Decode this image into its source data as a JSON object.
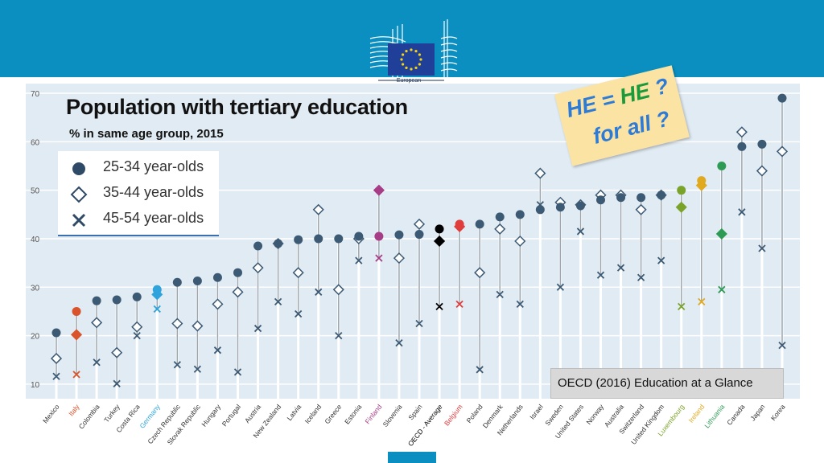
{
  "header": {
    "logo_text": "European",
    "brand_color": "#0a8fc0"
  },
  "title": "Population with tertiary education",
  "subtitle": "% in same age group, 2015",
  "legend": {
    "items": [
      {
        "label": "25-34 year-olds",
        "marker": "filled-circle"
      },
      {
        "label": "35-44 year-olds",
        "marker": "open-diamond"
      },
      {
        "label": "45-54 year-olds",
        "marker": "cross"
      }
    ]
  },
  "sticker": {
    "he_left": "HE",
    "equals": "=",
    "he_right": "HE",
    "question": "?",
    "line2": "for all ?"
  },
  "source_note": "OECD (2016) Education at a Glance",
  "chart_data": {
    "type": "scatter",
    "ylim": [
      7,
      72
    ],
    "yticks": [
      10,
      20,
      30,
      40,
      50,
      60,
      70
    ],
    "grid": true,
    "categories": [
      "Mexico",
      "Italy",
      "Colombia",
      "Turkey",
      "Costa Rica",
      "Germany",
      "Czech Republic",
      "Slovak Republic",
      "Hungary",
      "Portugal",
      "Austria",
      "New Zealand",
      "Latvia",
      "Iceland",
      "Greece",
      "Estonia",
      "Finland",
      "Slovenia",
      "Spain",
      "OECD - Average",
      "Belgium",
      "Poland",
      "Denmark",
      "Netherlands",
      "Israel",
      "Sweden",
      "United States",
      "Norway",
      "Australia",
      "Switzerland",
      "United Kingdom",
      "Luxembourg",
      "Ireland",
      "Lithuania",
      "Canada",
      "Japan",
      "Korea"
    ],
    "category_colors": {
      "Italy": "#d9532b",
      "Germany": "#2fa3db",
      "Finland": "#a63d86",
      "OECD - Average": "#000000",
      "Belgium": "#e03d3d",
      "Luxembourg": "#7aa32a",
      "Ireland": "#e0a91e",
      "Lithuania": "#2e9b55"
    },
    "default_color": "#3d5a74",
    "series": [
      {
        "name": "25-34 year-olds",
        "values": [
          20.6,
          25.0,
          27.2,
          27.4,
          28.0,
          29.5,
          31.0,
          31.3,
          32.0,
          33.0,
          38.5,
          39.0,
          39.8,
          40.0,
          40.0,
          40.5,
          40.5,
          40.8,
          40.9,
          42.0,
          43.0,
          43.0,
          44.5,
          45.0,
          46.0,
          46.5,
          46.8,
          48.0,
          48.5,
          48.5,
          49.0,
          50.0,
          52.0,
          55.0,
          59.0,
          59.5,
          69.0
        ]
      },
      {
        "name": "35-44 year-olds",
        "values": [
          15.3,
          20.2,
          22.7,
          16.5,
          21.8,
          28.5,
          22.5,
          22.0,
          26.5,
          29.0,
          34.0,
          39.0,
          33.0,
          46.0,
          29.5,
          40.0,
          50.0,
          36.0,
          43.0,
          39.5,
          42.5,
          33.0,
          42.0,
          39.5,
          53.5,
          47.5,
          47.0,
          49.0,
          49.0,
          46.0,
          49.0,
          46.5,
          51.0,
          41.0,
          62.0,
          54.0,
          58.0
        ]
      },
      {
        "name": "45-54 year-olds",
        "values": [
          11.6,
          12.0,
          14.5,
          10.1,
          20.0,
          25.5,
          14.0,
          13.1,
          17.0,
          12.5,
          21.5,
          27.0,
          24.5,
          29.0,
          20.0,
          35.5,
          36.0,
          18.5,
          22.5,
          26.0,
          26.5,
          13.0,
          28.5,
          26.5,
          47.0,
          30.0,
          41.5,
          32.5,
          34.0,
          32.0,
          35.5,
          26.0,
          27.0,
          29.5,
          45.5,
          38.0,
          18.0
        ]
      }
    ]
  }
}
